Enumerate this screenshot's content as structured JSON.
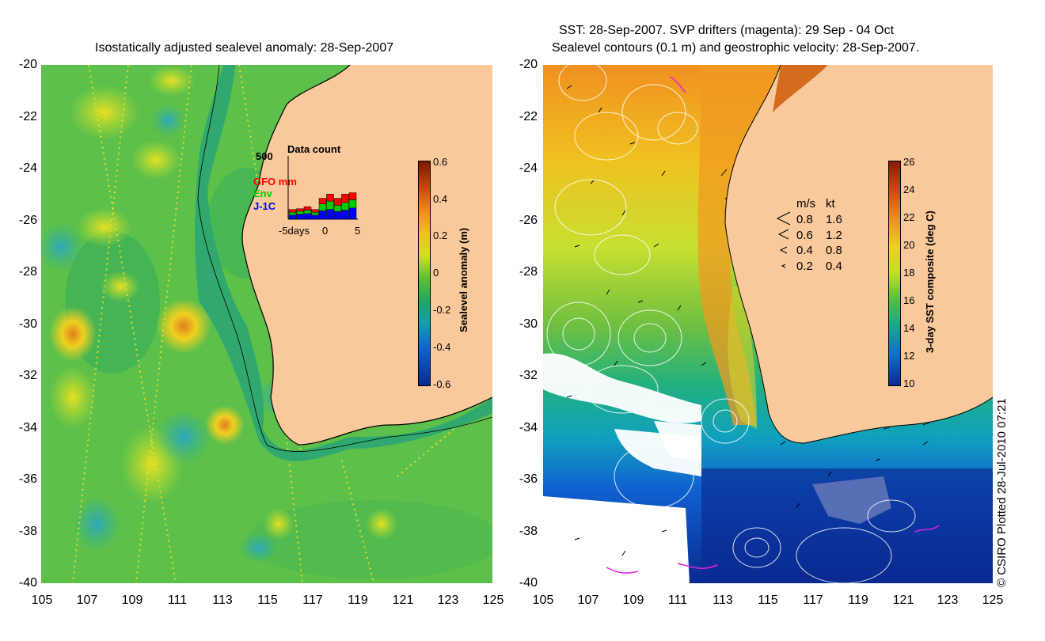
{
  "left_panel": {
    "title": "Isostatically adjusted sealevel anomaly: 28-Sep-2007",
    "colorbar": {
      "label": "Sealevel anomaly (m)",
      "ticks": [
        "0.6",
        "0.4",
        "0.2",
        "0",
        "-0.2",
        "-0.4",
        "-0.6"
      ],
      "colors": [
        "#7a1a00",
        "#c84a10",
        "#f08a20",
        "#f0c020",
        "#d0e020",
        "#60c030",
        "#20a860",
        "#10a0b0",
        "#1060d0",
        "#0a2a90"
      ]
    },
    "inset": {
      "title": "Data count",
      "y_max_label": "500",
      "x_labels": [
        "-5days",
        "0",
        "5"
      ],
      "legend": [
        {
          "label": "GFO mm",
          "color": "#ff0000"
        },
        {
          "label": "Env",
          "color": "#00cc00"
        },
        {
          "label": "J-1C",
          "color": "#0000ff"
        }
      ],
      "bars": [
        {
          "j1c": 30,
          "env": 20,
          "gfo": 20
        },
        {
          "j1c": 35,
          "env": 22,
          "gfo": 18
        },
        {
          "j1c": 40,
          "env": 25,
          "gfo": 25
        },
        {
          "j1c": 30,
          "env": 20,
          "gfo": 20
        },
        {
          "j1c": 60,
          "env": 50,
          "gfo": 40
        },
        {
          "j1c": 70,
          "env": 60,
          "gfo": 50
        },
        {
          "j1c": 55,
          "env": 45,
          "gfo": 50
        },
        {
          "j1c": 65,
          "env": 55,
          "gfo": 60
        },
        {
          "j1c": 80,
          "env": 60,
          "gfo": 50
        }
      ]
    }
  },
  "right_panel": {
    "title_line1": "SST: 28-Sep-2007. SVP drifters (magenta): 29 Sep - 04 Oct",
    "title_line2": "Sealevel contours (0.1 m) and geostrophic velocity: 28-Sep-2007.",
    "colorbar": {
      "label": "3-day SST composite (deg C)",
      "ticks": [
        "26",
        "24",
        "22",
        "20",
        "18",
        "16",
        "14",
        "12",
        "10"
      ],
      "colors": [
        "#8a1a00",
        "#d05010",
        "#f09020",
        "#f0d020",
        "#c0e020",
        "#50c040",
        "#10a890",
        "#1070d0",
        "#0a2a90"
      ]
    },
    "velocity_legend": {
      "header_ms": "m/s",
      "header_kt": "kt",
      "rows": [
        {
          "ms": "0.8",
          "kt": "1.6"
        },
        {
          "ms": "0.6",
          "kt": "1.2"
        },
        {
          "ms": "0.4",
          "kt": "0.8"
        },
        {
          "ms": "0.2",
          "kt": "0.4"
        }
      ]
    }
  },
  "axes": {
    "lat_labels": [
      "-20",
      "-22",
      "-24",
      "-26",
      "-28",
      "-30",
      "-32",
      "-34",
      "-36",
      "-38",
      "-40"
    ],
    "lon_labels": [
      "105",
      "107",
      "109",
      "111",
      "113",
      "115",
      "117",
      "119",
      "121",
      "123",
      "125"
    ]
  },
  "colors": {
    "land": "#f9c89b",
    "ocean_base_left": "#5cc04a",
    "ocean_base_right": "#30a060"
  },
  "credit": "© CSIRO Plotted 28-Jul-2010 07:21"
}
